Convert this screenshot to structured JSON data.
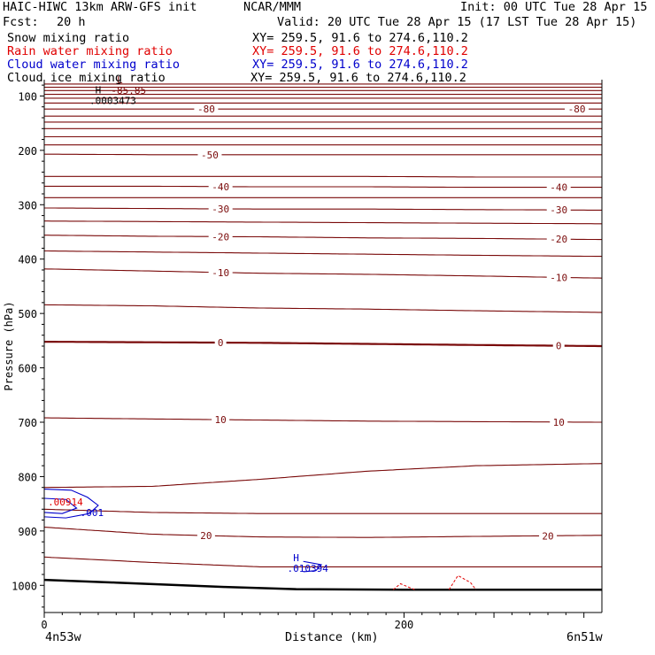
{
  "header": {
    "model": "HAIC-HIWC 13km ARW-GFS init",
    "org": "NCAR/MMM",
    "init": "Init: 00 UTC Tue 28 Apr 15",
    "fcst_label": "Fcst:",
    "fcst_value": "20 h",
    "valid": "Valid: 20 UTC Tue 28 Apr 15 (17 LST Tue 28 Apr 15)"
  },
  "fields": [
    {
      "name": "Snow mixing ratio",
      "xy": "XY= 259.5, 91.6 to 274.6,110.2",
      "color": "#000000"
    },
    {
      "name": "Rain water mixing ratio",
      "xy": "XY= 259.5, 91.6 to 274.6,110.2",
      "color": "#e00000"
    },
    {
      "name": "Cloud water mixing ratio",
      "xy": "XY= 259.5, 91.6 to 274.6,110.2",
      "color": "#0000cc"
    },
    {
      "name": "Cloud ice mixing ratio",
      "xy": "XY= 259.5, 91.6 to 274.6,110.2",
      "color": "#000000"
    }
  ],
  "chart_data": {
    "type": "cross-section contour",
    "xlabel": "Distance (km)",
    "ylabel": "Pressure (hPa)",
    "xlim": [
      0,
      310
    ],
    "ylim": [
      1050,
      70
    ],
    "x_ticks": [
      0,
      50,
      100,
      150,
      200,
      250,
      300
    ],
    "x_tick_labels": [
      {
        "x": 0,
        "label": "0"
      },
      {
        "x": 200,
        "label": "200"
      }
    ],
    "y_ticks": [
      100,
      200,
      300,
      400,
      500,
      600,
      700,
      800,
      900,
      1000
    ],
    "y_tick_labels": [
      "100",
      "200",
      "300",
      "400",
      "500",
      "600",
      "700",
      "800",
      "900",
      "1000"
    ],
    "endpoints": {
      "left": "4n53w",
      "right": "6n51w"
    },
    "temperature_contours": [
      {
        "p": [
          552,
          553,
          554,
          556,
          558,
          560
        ],
        "labels": [
          {
            "x": 98,
            "text": "0"
          },
          {
            "x": 286,
            "text": "0"
          }
        ],
        "bold": true
      },
      {
        "p": [
          484,
          486,
          490,
          492,
          495,
          498
        ],
        "labels": [],
        "bold": false
      },
      {
        "p": [
          418,
          422,
          426,
          428,
          431,
          435
        ],
        "labels": [
          {
            "x": 98,
            "text": "-10"
          },
          {
            "x": 286,
            "text": "-10"
          }
        ],
        "bold": false
      },
      {
        "p": [
          385,
          387,
          389,
          391,
          393,
          395
        ],
        "labels": [],
        "bold": false
      },
      {
        "p": [
          356,
          358,
          359,
          361,
          362,
          364
        ],
        "labels": [
          {
            "x": 98,
            "text": "-20"
          },
          {
            "x": 286,
            "text": "-20"
          }
        ],
        "bold": false
      },
      {
        "p": [
          330,
          331,
          332,
          333,
          334,
          335
        ],
        "labels": [],
        "bold": false
      },
      {
        "p": [
          306,
          307,
          308,
          308,
          309,
          310
        ],
        "labels": [
          {
            "x": 98,
            "text": "-30"
          },
          {
            "x": 286,
            "text": "-30"
          }
        ],
        "bold": false
      },
      {
        "p": [
          287,
          287,
          287,
          287,
          287,
          287
        ],
        "labels": [],
        "bold": false
      },
      {
        "p": [
          266,
          266,
          267,
          267,
          268,
          268
        ],
        "labels": [
          {
            "x": 98,
            "text": "-40"
          },
          {
            "x": 286,
            "text": "-40"
          }
        ],
        "bold": false
      },
      {
        "p": [
          248,
          248,
          248,
          248,
          249,
          249
        ],
        "labels": [],
        "bold": false
      },
      {
        "p": [
          207,
          208,
          208,
          208,
          208,
          208
        ],
        "labels": [
          {
            "x": 92,
            "text": "-50"
          }
        ],
        "bold": false
      },
      {
        "p": [
          190,
          190,
          190,
          190,
          190,
          190
        ],
        "labels": [],
        "bold": false
      },
      {
        "p": [
          175,
          175,
          175,
          175,
          175,
          175
        ],
        "labels": [],
        "bold": false
      },
      {
        "p": [
          160,
          160,
          160,
          160,
          160,
          160
        ],
        "labels": [],
        "bold": false
      },
      {
        "p": [
          148,
          148,
          148,
          148,
          148,
          148
        ],
        "labels": [],
        "bold": false
      },
      {
        "p": [
          137,
          137,
          137,
          137,
          137,
          137
        ],
        "labels": [],
        "bold": false
      },
      {
        "p": [
          124,
          124,
          124,
          124,
          124,
          124
        ],
        "labels": [
          {
            "x": 90,
            "text": "-80"
          },
          {
            "x": 296,
            "text": "-80"
          }
        ],
        "bold": false
      },
      {
        "p": [
          113,
          113,
          113,
          113,
          113,
          113
        ],
        "labels": [],
        "bold": false
      },
      {
        "p": [
          104,
          104,
          104,
          104,
          104,
          104
        ],
        "labels": [],
        "bold": false
      },
      {
        "p": [
          97,
          97,
          97,
          97,
          97,
          97
        ],
        "labels": [],
        "bold": false
      },
      {
        "p": [
          90,
          90,
          90,
          90,
          90,
          90
        ],
        "labels": [],
        "bold": false
      },
      {
        "p": [
          84,
          84,
          84,
          84,
          84,
          84
        ],
        "labels": [],
        "bold": false
      },
      {
        "p": [
          78,
          78,
          78,
          78,
          78,
          78
        ],
        "labels": [],
        "bold": false
      },
      {
        "p": [
          692,
          694,
          696,
          698,
          699,
          700
        ],
        "labels": [
          {
            "x": 98,
            "text": "10"
          },
          {
            "x": 286,
            "text": "10"
          }
        ],
        "bold": false
      },
      {
        "p": [
          820,
          818,
          805,
          790,
          780,
          776
        ],
        "labels": [],
        "bold": false
      },
      {
        "p": [
          860,
          866,
          868,
          868,
          868,
          868
        ],
        "labels": [],
        "bold": false
      },
      {
        "p": [
          893,
          906,
          911,
          912,
          910,
          908
        ],
        "labels": [
          {
            "x": 90,
            "text": "20"
          },
          {
            "x": 280,
            "text": "20"
          }
        ],
        "bold": false
      },
      {
        "p": [
          948,
          958,
          966,
          966,
          966,
          966
        ],
        "labels": [],
        "bold": false
      }
    ],
    "contour_x": [
      0,
      60,
      120,
      180,
      240,
      310
    ],
    "surface_pressure": {
      "x": [
        0,
        40,
        100,
        140,
        200,
        310
      ],
      "p": [
        990,
        995,
        1003,
        1007,
        1008,
        1008
      ]
    },
    "extrema": [
      {
        "type": "L",
        "label": "-85.85",
        "x": 42,
        "p": 86,
        "color": "#7a0a0a"
      },
      {
        "type": "H",
        "label": ".0003473",
        "x": 30,
        "p": 105,
        "color": "#000000"
      },
      {
        "type": "H",
        "label": ".010394",
        "x": 140,
        "p": 965,
        "color": "#0000cc"
      },
      {
        "type": "",
        "label": ".001",
        "x": 20,
        "p": 863,
        "color": "#0000cc"
      },
      {
        "type": "",
        "label": ".00914",
        "x": 2,
        "p": 843,
        "color": "#e00000"
      }
    ]
  },
  "colors": {
    "temperature": "#7a0a0a",
    "cloud_water": "#0000cc",
    "rain": "#e00000",
    "axis": "#000000",
    "ground": "#000000"
  }
}
